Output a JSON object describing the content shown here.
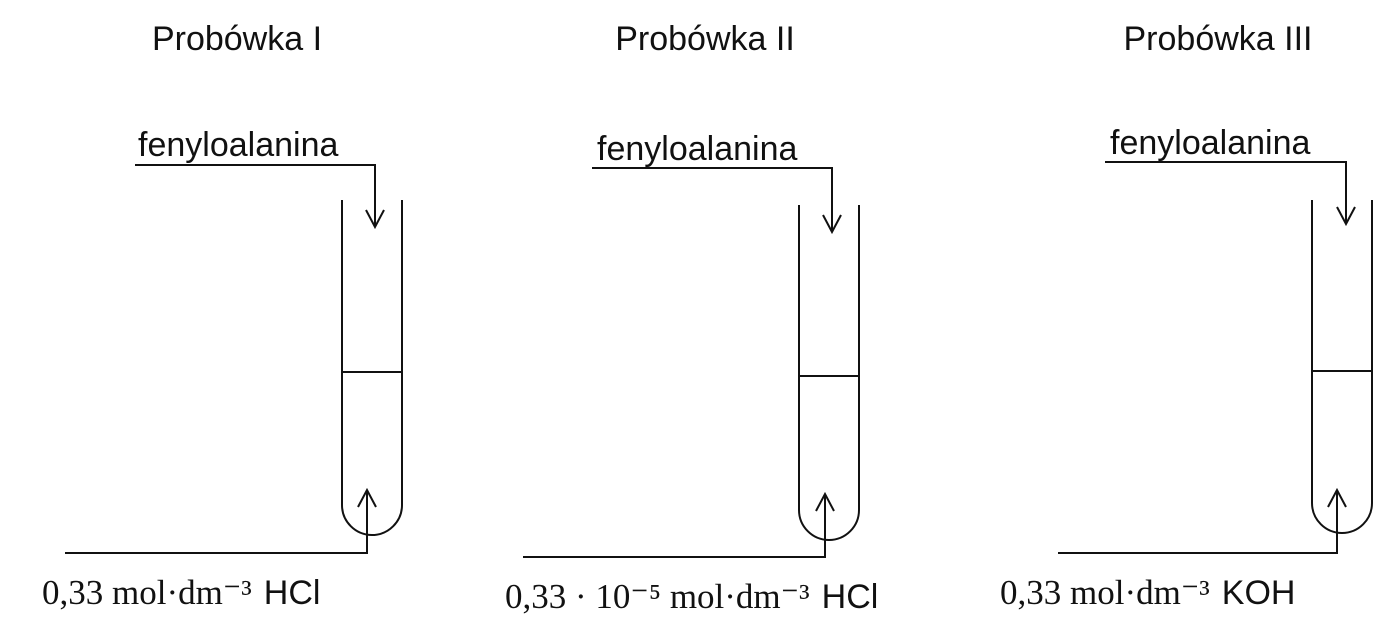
{
  "tubes": [
    {
      "title": "Probówka I",
      "top_label": "fenyloalanina",
      "concentration": "0,33 mol·dm⁻³",
      "reagent": "HCl"
    },
    {
      "title": "Probówka II",
      "top_label": "fenyloalanina",
      "concentration": "0,33 · 10⁻⁵ mol·dm⁻³",
      "reagent": "HCl"
    },
    {
      "title": "Probówka III",
      "top_label": "fenyloalanina",
      "concentration": "0,33 mol·dm⁻³",
      "reagent": "KOH"
    }
  ]
}
